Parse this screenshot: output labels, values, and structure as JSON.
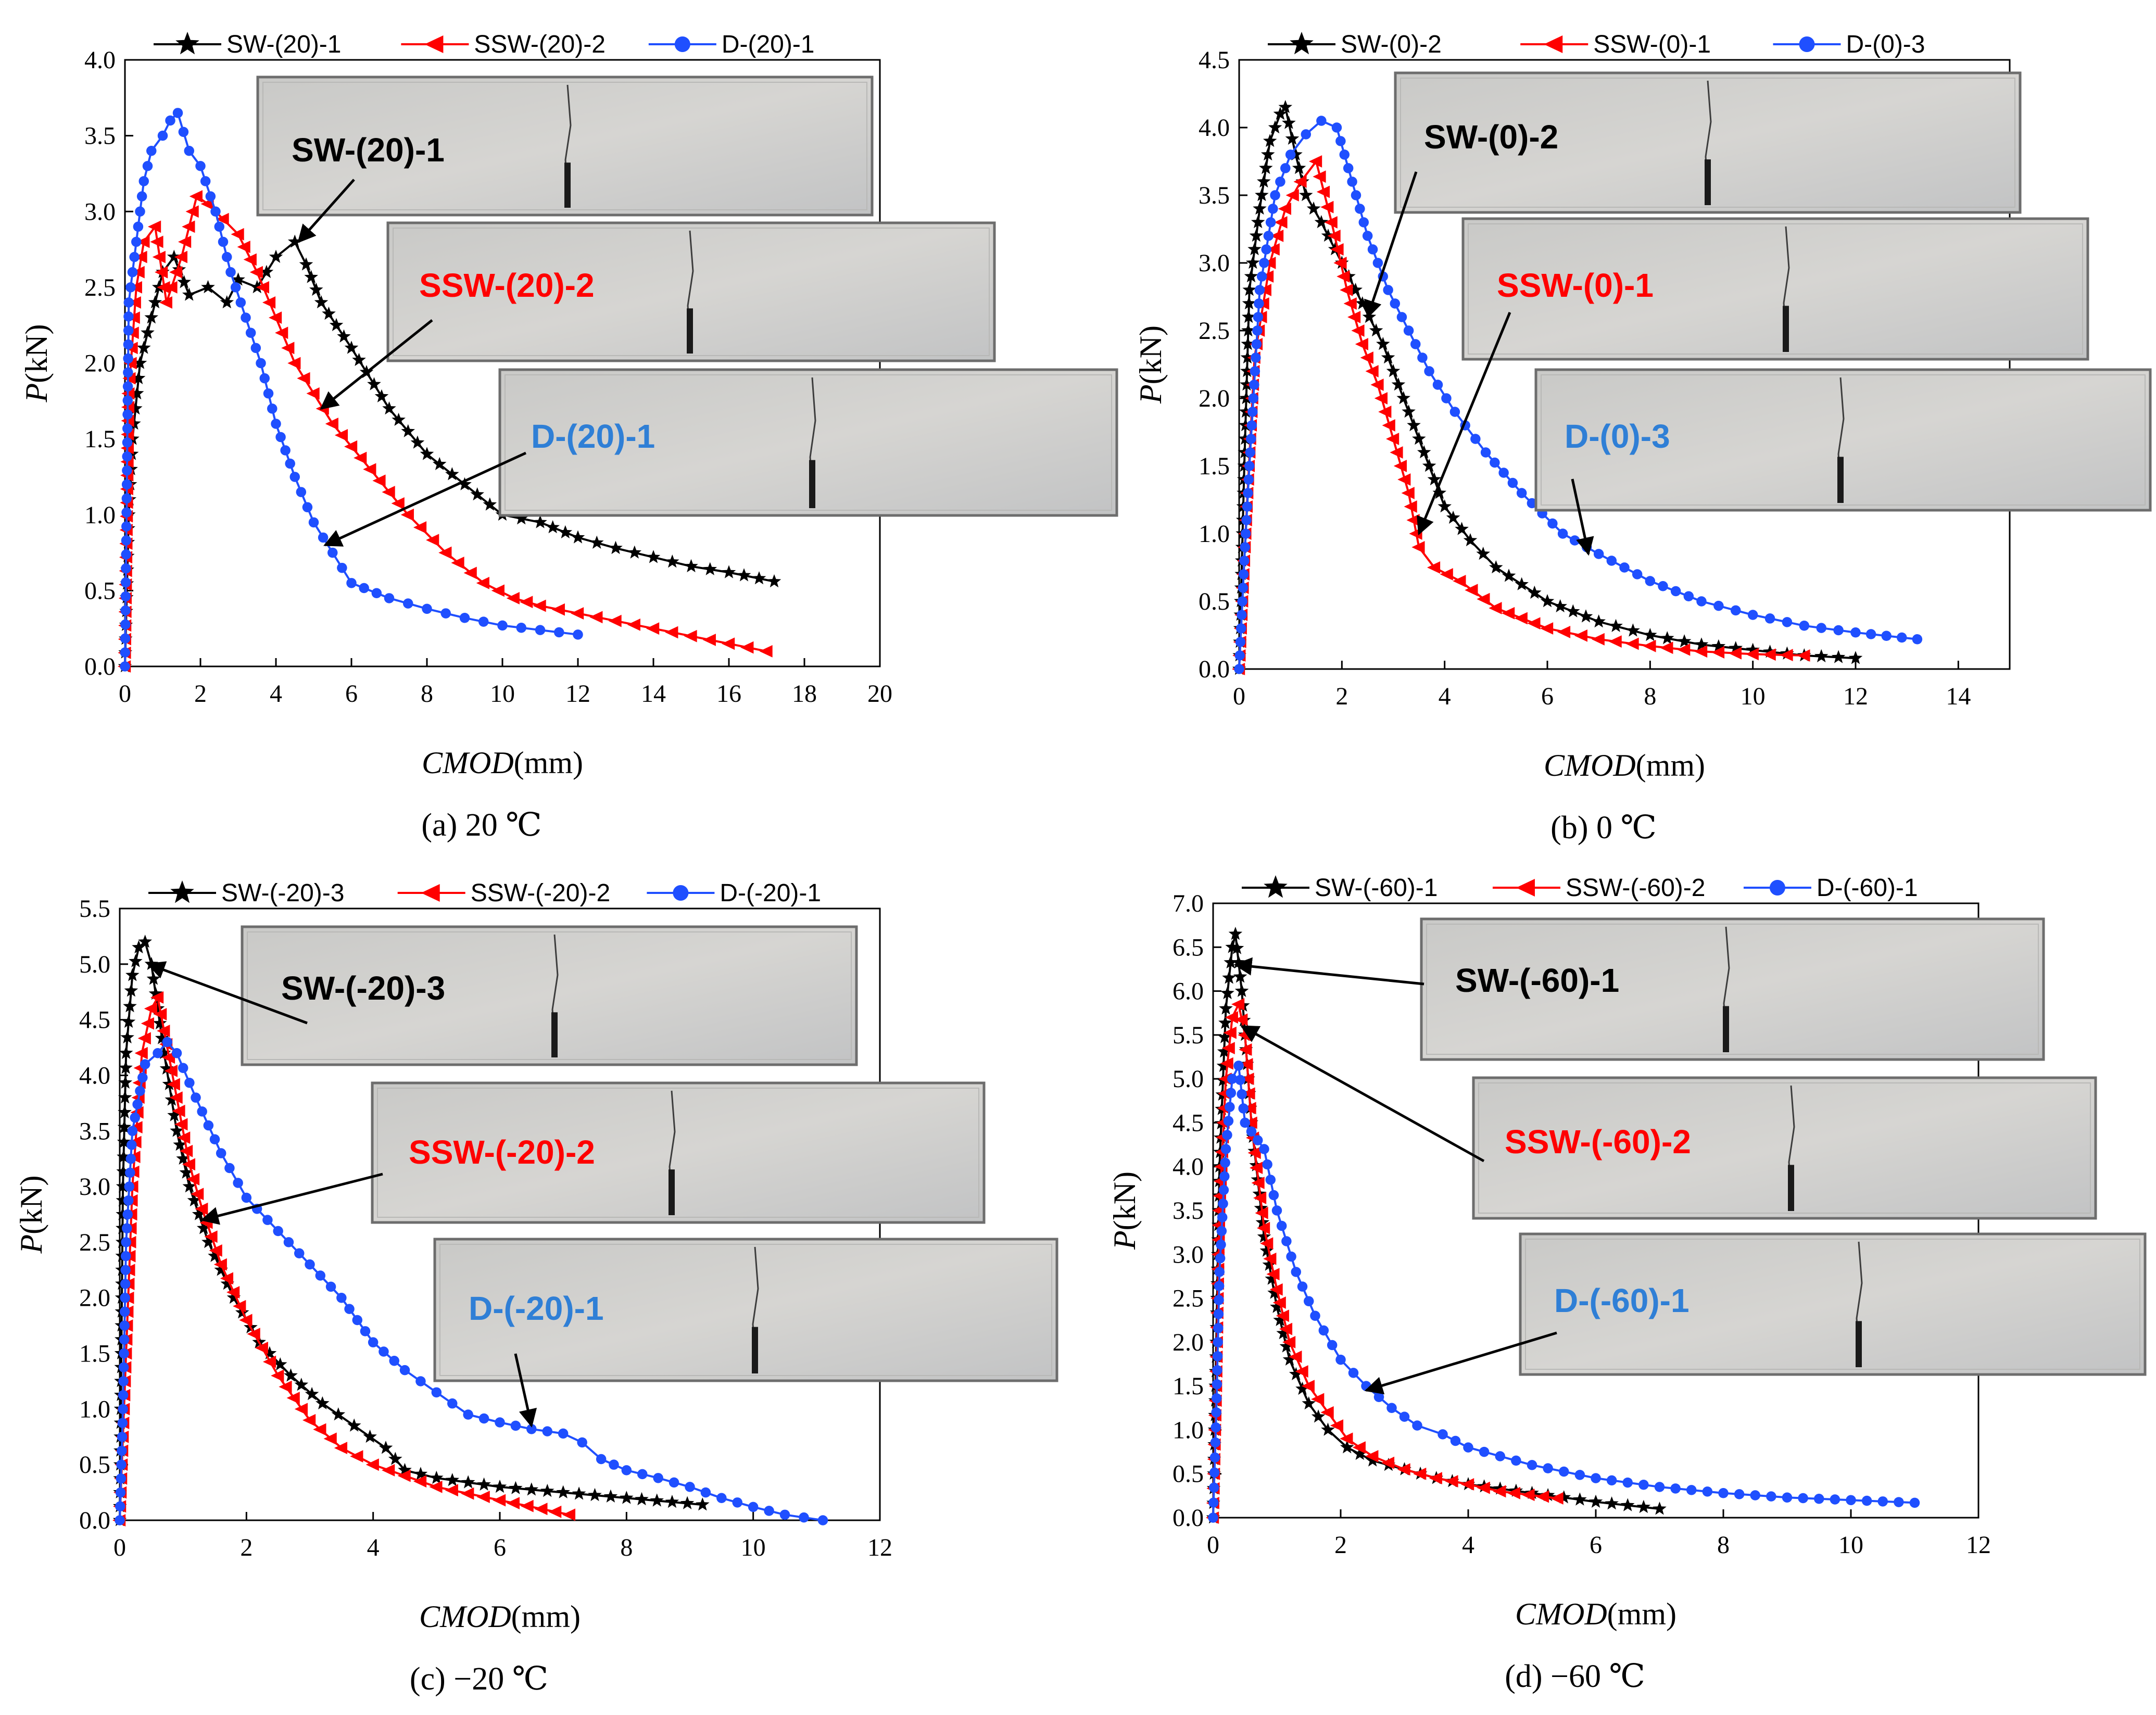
{
  "colors": {
    "sw": "#000000",
    "ssw": "#ff0000",
    "d": "#1f4fff",
    "d_label": "#2f7fd6"
  },
  "chart_data": [
    {
      "type": "line",
      "caption": "(a) 20 ℃",
      "xlabel": "CMOD(mm)",
      "ylabel": "P(kN)",
      "xlim": [
        0,
        20
      ],
      "ylim": [
        0,
        4.0
      ],
      "xticks": [
        "0",
        "2",
        "4",
        "6",
        "8",
        "10",
        "12",
        "14",
        "16",
        "18",
        "20"
      ],
      "yticks": [
        "0.0",
        "0.5",
        "1.0",
        "1.5",
        "2.0",
        "2.5",
        "3.0",
        "3.5",
        "4.0"
      ],
      "legend_position": "top",
      "series": [
        {
          "name": "SW-(20)-1",
          "marker": "star",
          "color": "#000000",
          "x": [
            0,
            0.1,
            0.2,
            0.4,
            0.7,
            1.0,
            1.3,
            1.7,
            2.2,
            2.7,
            3.0,
            3.5,
            4.0,
            4.5,
            4.8,
            5.2,
            6,
            7,
            8,
            9,
            10,
            11,
            12,
            13,
            14,
            15,
            16,
            17.2
          ],
          "y": [
            0,
            1.0,
            1.5,
            2.0,
            2.3,
            2.6,
            2.7,
            2.45,
            2.5,
            2.4,
            2.55,
            2.5,
            2.7,
            2.8,
            2.65,
            2.4,
            2.1,
            1.7,
            1.4,
            1.2,
            1.0,
            0.95,
            0.85,
            0.78,
            0.72,
            0.66,
            0.62,
            0.56
          ]
        },
        {
          "name": "SSW-(20)-2",
          "marker": "triangle",
          "color": "#ff0000",
          "x": [
            0,
            0.1,
            0.3,
            0.5,
            0.8,
            1.1,
            1.5,
            1.9,
            2.2,
            2.6,
            3.0,
            3.5,
            4.0,
            4.5,
            5.0,
            5.5,
            6.5,
            7.5,
            8.5,
            9.5,
            10.3,
            11,
            12,
            13,
            14,
            15,
            16,
            17
          ],
          "y": [
            0,
            1.8,
            2.5,
            2.8,
            2.9,
            2.4,
            2.7,
            3.1,
            3.05,
            2.95,
            2.85,
            2.6,
            2.3,
            2.0,
            1.8,
            1.6,
            1.3,
            1.0,
            0.75,
            0.55,
            0.45,
            0.4,
            0.35,
            0.3,
            0.25,
            0.2,
            0.15,
            0.1
          ]
        },
        {
          "name": "D-(20)-1",
          "marker": "circle",
          "color": "#1f4fff",
          "x": [
            0,
            0.1,
            0.3,
            0.5,
            0.7,
            1.0,
            1.2,
            1.4,
            1.7,
            2.0,
            2.4,
            2.8,
            3.2,
            3.6,
            4.0,
            4.5,
            5.0,
            5.5,
            6.0,
            7.0,
            8.0,
            9.0,
            10.0,
            11.0,
            12.0
          ],
          "y": [
            0,
            2.4,
            2.8,
            3.2,
            3.4,
            3.5,
            3.6,
            3.65,
            3.4,
            3.3,
            3.0,
            2.6,
            2.3,
            2.0,
            1.6,
            1.25,
            0.95,
            0.75,
            0.55,
            0.45,
            0.38,
            0.32,
            0.27,
            0.24,
            0.21
          ]
        }
      ],
      "annotations": [
        "SW-(20)-1",
        "SSW-(20)-2",
        "D-(20)-1"
      ]
    },
    {
      "type": "line",
      "caption": "(b) 0 ℃",
      "xlabel": "CMOD(mm)",
      "ylabel": "P(kN)",
      "xlim": [
        0,
        15
      ],
      "ylim": [
        0,
        4.5
      ],
      "xticks": [
        "0",
        "2",
        "4",
        "6",
        "8",
        "10",
        "12",
        "14"
      ],
      "yticks": [
        "0.0",
        "0.5",
        "1.0",
        "1.5",
        "2.0",
        "2.5",
        "3.0",
        "3.5",
        "4.0",
        "4.5"
      ],
      "legend_position": "top",
      "series": [
        {
          "name": "SW-(0)-2",
          "marker": "star",
          "color": "#000000",
          "x": [
            0,
            0.1,
            0.2,
            0.4,
            0.6,
            0.8,
            0.9,
            1.1,
            1.3,
            1.6,
            2.0,
            2.4,
            2.8,
            3.2,
            3.6,
            4.0,
            4.5,
            5,
            6,
            7,
            8,
            9,
            10,
            11,
            12
          ],
          "y": [
            0,
            1.5,
            2.8,
            3.4,
            3.9,
            4.1,
            4.15,
            3.8,
            3.5,
            3.3,
            3.0,
            2.7,
            2.4,
            2.0,
            1.6,
            1.2,
            0.95,
            0.75,
            0.5,
            0.35,
            0.25,
            0.18,
            0.14,
            0.1,
            0.08
          ]
        },
        {
          "name": "SSW-(0)-1",
          "marker": "triangle",
          "color": "#ff0000",
          "x": [
            0,
            0.15,
            0.3,
            0.6,
            0.9,
            1.2,
            1.5,
            1.8,
            2.1,
            2.4,
            2.7,
            3.0,
            3.3,
            3.5,
            3.8,
            4.3,
            5,
            6,
            7,
            8,
            9,
            10,
            11
          ],
          "y": [
            0,
            1.2,
            2.3,
            3.0,
            3.4,
            3.6,
            3.75,
            3.3,
            2.8,
            2.4,
            2.1,
            1.7,
            1.3,
            0.9,
            0.75,
            0.65,
            0.45,
            0.3,
            0.22,
            0.17,
            0.13,
            0.11,
            0.1
          ]
        },
        {
          "name": "D-(0)-3",
          "marker": "circle",
          "color": "#1f4fff",
          "x": [
            0,
            0.1,
            0.2,
            0.4,
            0.7,
            1.0,
            1.3,
            1.6,
            1.9,
            2.2,
            2.5,
            2.9,
            3.3,
            3.7,
            4.2,
            4.8,
            5.5,
            6.3,
            7,
            8,
            9,
            10,
            11,
            12,
            13.2
          ],
          "y": [
            0,
            0.8,
            1.5,
            2.8,
            3.5,
            3.8,
            3.95,
            4.05,
            4.0,
            3.6,
            3.2,
            2.8,
            2.5,
            2.2,
            1.9,
            1.6,
            1.3,
            1.0,
            0.85,
            0.65,
            0.5,
            0.4,
            0.32,
            0.27,
            0.22
          ]
        }
      ],
      "annotations": [
        "SW-(0)-2",
        "SSW-(0)-1",
        "D-(0)-3"
      ]
    },
    {
      "type": "line",
      "caption": "(c) −20 ℃",
      "xlabel": "CMOD(mm)",
      "ylabel": "P(kN)",
      "xlim": [
        0,
        12
      ],
      "ylim": [
        0,
        5.5
      ],
      "xticks": [
        "0",
        "2",
        "4",
        "6",
        "8",
        "10",
        "12"
      ],
      "yticks": [
        "0.0",
        "0.5",
        "1.0",
        "1.5",
        "2.0",
        "2.5",
        "3.0",
        "3.5",
        "4.0",
        "4.5",
        "5.0",
        "5.5"
      ],
      "legend_position": "top",
      "series": [
        {
          "name": "SW-(-20)-3",
          "marker": "star",
          "color": "#000000",
          "x": [
            0,
            0.05,
            0.1,
            0.2,
            0.3,
            0.4,
            0.5,
            0.7,
            0.9,
            1.1,
            1.4,
            1.8,
            2.2,
            2.7,
            3.2,
            3.7,
            4.2,
            4.5,
            5,
            6,
            7,
            8,
            9.2
          ],
          "y": [
            0,
            3.0,
            4.2,
            4.9,
            5.15,
            5.2,
            5.0,
            4.2,
            3.5,
            3.0,
            2.5,
            2.0,
            1.6,
            1.3,
            1.05,
            0.85,
            0.65,
            0.45,
            0.38,
            0.3,
            0.25,
            0.2,
            0.14
          ]
        },
        {
          "name": "SSW-(-20)-2",
          "marker": "triangle",
          "color": "#ff0000",
          "x": [
            0,
            0.1,
            0.2,
            0.35,
            0.5,
            0.6,
            0.7,
            0.9,
            1.1,
            1.3,
            1.6,
            2.0,
            2.5,
            3.0,
            3.5,
            4.0,
            4.5,
            5,
            6,
            7.1
          ],
          "y": [
            0,
            1.5,
            3.0,
            4.2,
            4.6,
            4.7,
            4.4,
            3.8,
            3.2,
            2.8,
            2.3,
            1.8,
            1.3,
            0.9,
            0.65,
            0.5,
            0.4,
            0.3,
            0.18,
            0.05
          ]
        },
        {
          "name": "D-(-20)-1",
          "marker": "circle",
          "color": "#1f4fff",
          "x": [
            0,
            0.05,
            0.1,
            0.2,
            0.4,
            0.6,
            0.75,
            0.9,
            1.2,
            1.6,
            2.0,
            2.5,
            3.0,
            3.5,
            4.0,
            4.5,
            5.0,
            5.5,
            6.0,
            6.5,
            7.0,
            7.3,
            7.6,
            8.0,
            8.5,
            9.0,
            9.5,
            10,
            10.5,
            11.1
          ],
          "y": [
            0,
            1.0,
            2.5,
            3.5,
            4.1,
            4.2,
            4.3,
            4.2,
            3.8,
            3.3,
            2.9,
            2.6,
            2.3,
            2.0,
            1.6,
            1.35,
            1.15,
            0.95,
            0.88,
            0.82,
            0.78,
            0.7,
            0.55,
            0.45,
            0.38,
            0.3,
            0.2,
            0.12,
            0.05,
            0.0
          ]
        }
      ],
      "annotations": [
        "SW-(-20)-3",
        "SSW-(-20)-2",
        "D-(-20)-1"
      ]
    },
    {
      "type": "line",
      "caption": "(d) −60 ℃",
      "xlabel": "CMOD(mm)",
      "ylabel": "P(kN)",
      "xlim": [
        0,
        12
      ],
      "ylim": [
        0,
        7.0
      ],
      "xticks": [
        "0",
        "2",
        "4",
        "6",
        "8",
        "10",
        "12"
      ],
      "yticks": [
        "0.0",
        "0.5",
        "1.0",
        "1.5",
        "2.0",
        "2.5",
        "3.0",
        "3.5",
        "4.0",
        "4.5",
        "5.0",
        "5.5",
        "6.0",
        "6.5",
        "7.0"
      ],
      "legend_position": "top",
      "series": [
        {
          "name": "SW-(-60)-1",
          "marker": "star",
          "color": "#000000",
          "x": [
            0,
            0.05,
            0.1,
            0.2,
            0.3,
            0.35,
            0.45,
            0.6,
            0.8,
            1.0,
            1.2,
            1.5,
            1.8,
            2.1,
            2.5,
            3,
            3.5,
            4,
            5,
            6,
            7
          ],
          "y": [
            0,
            2.0,
            4.0,
            5.8,
            6.5,
            6.65,
            6.0,
            4.5,
            3.2,
            2.4,
            1.8,
            1.3,
            1.0,
            0.8,
            0.65,
            0.55,
            0.45,
            0.38,
            0.28,
            0.18,
            0.1
          ]
        },
        {
          "name": "SSW-(-60)-2",
          "marker": "triangle",
          "color": "#ff0000",
          "x": [
            0,
            0.05,
            0.1,
            0.2,
            0.3,
            0.4,
            0.5,
            0.6,
            0.8,
            1.0,
            1.2,
            1.5,
            1.8,
            2.1,
            2.5,
            3,
            3.5,
            4,
            4.5,
            5.4
          ],
          "y": [
            0,
            1.5,
            3.5,
            5.0,
            5.7,
            5.85,
            5.5,
            4.5,
            3.3,
            2.6,
            2.0,
            1.5,
            1.2,
            0.9,
            0.7,
            0.55,
            0.45,
            0.38,
            0.3,
            0.22
          ]
        },
        {
          "name": "D-(-60)-1",
          "marker": "circle",
          "color": "#1f4fff",
          "x": [
            0,
            0.05,
            0.1,
            0.2,
            0.3,
            0.4,
            0.5,
            0.6,
            0.7,
            0.8,
            1.0,
            1.3,
            1.6,
            2.0,
            2.4,
            2.8,
            3.2,
            3.6,
            4.0,
            5,
            6,
            7,
            8,
            9,
            10,
            11
          ],
          "y": [
            0,
            1.2,
            2.8,
            4.2,
            5.0,
            5.15,
            4.5,
            4.4,
            4.3,
            4.2,
            3.5,
            2.8,
            2.3,
            1.8,
            1.5,
            1.25,
            1.05,
            0.95,
            0.8,
            0.6,
            0.45,
            0.35,
            0.28,
            0.23,
            0.2,
            0.17
          ]
        }
      ],
      "annotations": [
        "SW-(-60)-1",
        "SSW-(-60)-2",
        "D-(-60)-1"
      ]
    }
  ]
}
